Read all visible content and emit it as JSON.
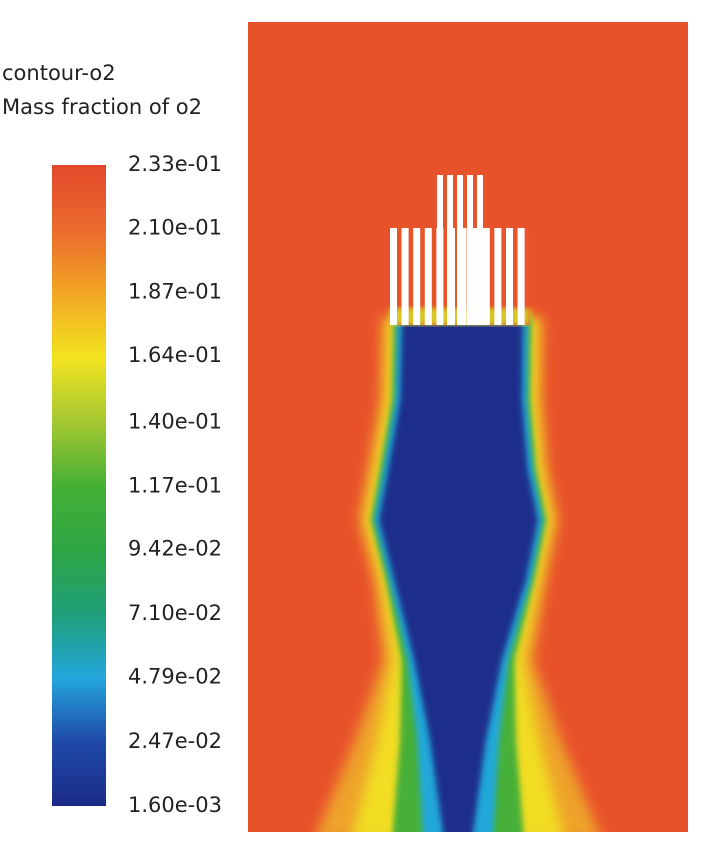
{
  "chart_data": {
    "type": "contour",
    "title": "contour-o2",
    "subtitle": "Mass fraction of o2",
    "clim": [
      0.0016,
      0.233
    ],
    "cticks": [
      {
        "value": 0.233,
        "label": "2.33e-01"
      },
      {
        "value": 0.21,
        "label": "2.10e-01"
      },
      {
        "value": 0.187,
        "label": "1.87e-01"
      },
      {
        "value": 0.164,
        "label": "1.64e-01"
      },
      {
        "value": 0.14,
        "label": "1.40e-01"
      },
      {
        "value": 0.117,
        "label": "1.17e-01"
      },
      {
        "value": 0.0942,
        "label": "9.42e-02"
      },
      {
        "value": 0.071,
        "label": "7.10e-02"
      },
      {
        "value": 0.0479,
        "label": "4.79e-02"
      },
      {
        "value": 0.0247,
        "label": "2.47e-02"
      },
      {
        "value": 0.0016,
        "label": "1.60e-03"
      }
    ]
  }
}
